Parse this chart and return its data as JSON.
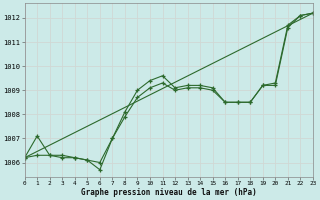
{
  "xlabel": "Graphe pression niveau de la mer (hPa)",
  "bg_color": "#cceae8",
  "grid_color": "#c8dcd8",
  "line_color": "#2d6a2d",
  "marker_color": "#2d6a2d",
  "x_min": 0,
  "x_max": 23,
  "y_min": 1005.4,
  "y_max": 1012.6,
  "yticks": [
    1006,
    1007,
    1008,
    1009,
    1010,
    1011,
    1012
  ],
  "xticks": [
    0,
    1,
    2,
    3,
    4,
    5,
    6,
    7,
    8,
    9,
    10,
    11,
    12,
    13,
    14,
    15,
    16,
    17,
    18,
    19,
    20,
    21,
    22,
    23
  ],
  "series": [
    {
      "x": [
        0,
        1,
        2,
        3,
        4,
        5,
        6,
        7,
        8,
        9,
        10,
        11,
        12,
        13,
        14,
        15,
        16,
        17,
        18,
        19,
        20,
        21,
        22,
        23
      ],
      "y": [
        1006.2,
        1007.1,
        1006.3,
        1006.3,
        1006.2,
        1006.1,
        1006.0,
        1007.0,
        1008.1,
        1009.0,
        1009.4,
        1009.6,
        1009.1,
        1009.2,
        1009.2,
        1009.1,
        1008.5,
        1008.5,
        1008.5,
        1009.2,
        1009.2,
        1011.6,
        1012.1,
        1012.2
      ],
      "has_markers": true
    },
    {
      "x": [
        0,
        23
      ],
      "y": [
        1006.2,
        1012.2
      ],
      "has_markers": false
    },
    {
      "x": [
        0,
        1,
        2,
        3,
        4,
        5,
        6,
        7,
        8,
        9,
        10,
        11,
        12,
        13,
        14,
        15,
        16,
        17,
        18,
        19,
        20,
        21,
        22,
        23
      ],
      "y": [
        1006.2,
        1006.3,
        1006.3,
        1006.2,
        1006.2,
        1006.1,
        1005.7,
        1007.0,
        1007.9,
        1008.7,
        1009.1,
        1009.3,
        1009.0,
        1009.1,
        1009.1,
        1009.0,
        1008.5,
        1008.5,
        1008.5,
        1009.2,
        1009.3,
        1011.7,
        1012.1,
        1012.2
      ],
      "has_markers": true
    }
  ]
}
